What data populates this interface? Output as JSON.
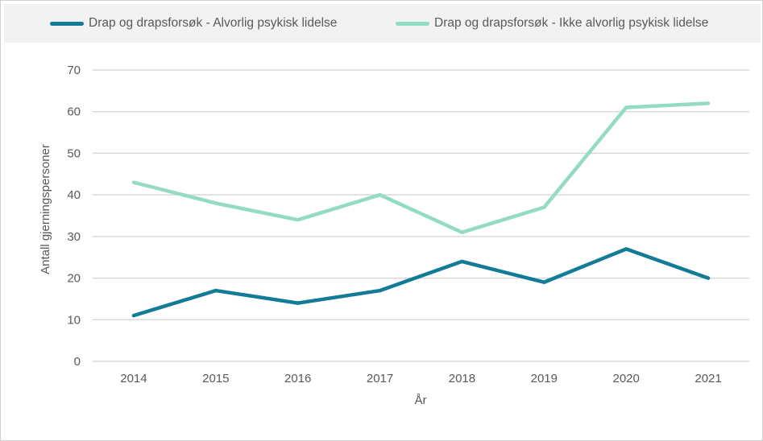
{
  "chart_data": {
    "type": "line",
    "categories": [
      "2014",
      "2015",
      "2016",
      "2017",
      "2018",
      "2019",
      "2020",
      "2021"
    ],
    "series": [
      {
        "name": "Drap og drapsforsøk - Alvorlig psykisk lidelse",
        "color": "#117b98",
        "values": [
          11,
          17,
          14,
          17,
          24,
          19,
          27,
          20
        ]
      },
      {
        "name": "Drap og drapsforsøk - Ikke alvorlig psykisk lidelse",
        "color": "#93dbc5",
        "values": [
          43,
          38,
          34,
          40,
          31,
          37,
          61,
          62
        ]
      }
    ],
    "xlabel": "År",
    "ylabel": "Antall gjerningspersoner",
    "ylim": [
      0,
      70
    ],
    "yticks": [
      0,
      10,
      20,
      30,
      40,
      50,
      60,
      70
    ],
    "grid": true,
    "legend": "top"
  }
}
